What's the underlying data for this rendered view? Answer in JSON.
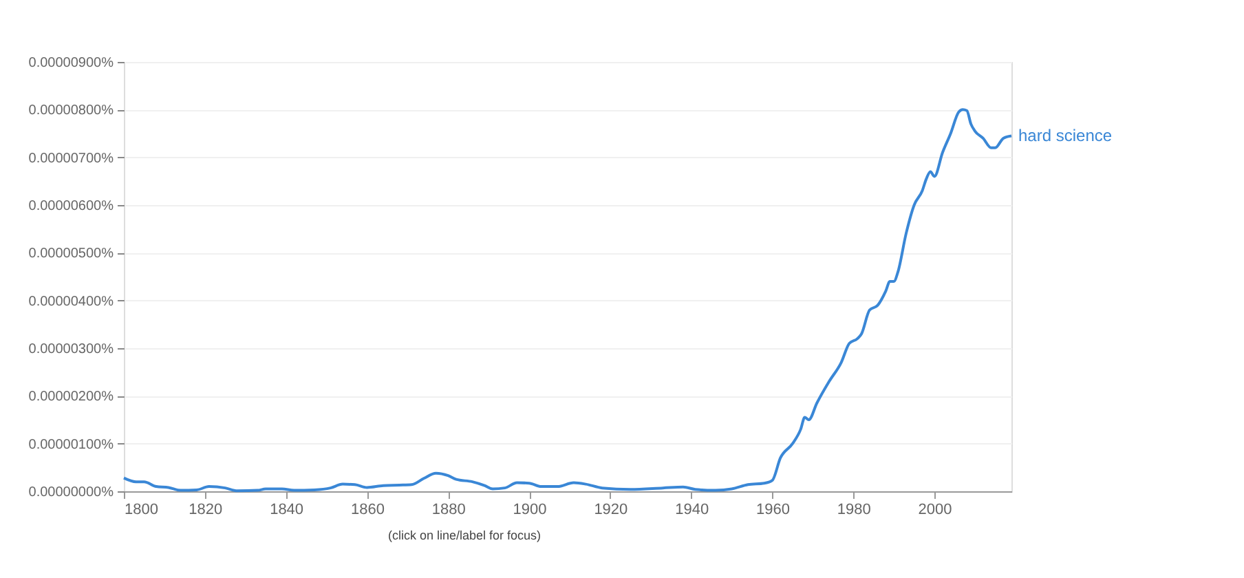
{
  "chart_data": {
    "type": "line",
    "x": [
      1800,
      1803,
      1805,
      1808,
      1811,
      1814,
      1818,
      1821,
      1825,
      1828,
      1833,
      1835,
      1839,
      1842,
      1847,
      1851,
      1854,
      1857,
      1860,
      1864,
      1868,
      1871,
      1874,
      1877,
      1880,
      1882,
      1886,
      1889,
      1891,
      1894,
      1897,
      1900,
      1903,
      1907,
      1911,
      1914,
      1918,
      1925,
      1933,
      1938,
      1941,
      1946,
      1950,
      1954,
      1958,
      1960,
      1962,
      1965,
      1967,
      1968,
      1969,
      1971,
      1974,
      1977,
      1979,
      1981,
      1982,
      1984,
      1986,
      1988,
      1989,
      1990,
      1991,
      1993,
      1995,
      1997,
      1998,
      1999,
      2000,
      2002,
      2004,
      2006,
      2007,
      2008,
      2009,
      2010,
      2012,
      2014,
      2015,
      2017,
      2019
    ],
    "series": [
      {
        "name": "hard science",
        "color": "#3a87d6",
        "values": [
          2.8e-07,
          2e-07,
          2e-07,
          1e-07,
          8e-08,
          2e-08,
          3e-08,
          1e-07,
          7e-08,
          1e-08,
          2e-08,
          5e-08,
          5e-08,
          2e-08,
          3e-08,
          7e-08,
          1.5e-07,
          1.4e-07,
          8e-08,
          1.2e-07,
          1.3e-07,
          1.4e-07,
          2.7e-07,
          3.8e-07,
          3.3e-07,
          2.5e-07,
          2e-07,
          1.2e-07,
          5e-08,
          7e-08,
          1.8e-07,
          1.7e-07,
          1e-07,
          1e-07,
          1.8e-07,
          1.5e-07,
          7e-08,
          4e-08,
          7e-08,
          9e-08,
          4e-08,
          2e-08,
          5e-08,
          1.4e-07,
          1.7e-07,
          2.3e-07,
          7e-07,
          1e-06,
          1.3e-06,
          1.55e-06,
          1.5e-06,
          1.85e-06,
          2.3e-06,
          2.7e-06,
          3.1e-06,
          3.2e-06,
          3.3e-06,
          3.8e-06,
          3.9e-06,
          4.2e-06,
          4.4e-06,
          4.4e-06,
          4.6e-06,
          5.4e-06,
          6e-06,
          6.3e-06,
          6.55e-06,
          6.7e-06,
          6.6e-06,
          7.1e-06,
          7.5e-06,
          7.95e-06,
          8e-06,
          7.98e-06,
          7.7e-06,
          7.55e-06,
          7.4e-06,
          7.2e-06,
          7.2e-06,
          7.4e-06,
          7.45e-06
        ]
      }
    ],
    "xlim": [
      1800,
      2019
    ],
    "xticks": [
      1800,
      1820,
      1840,
      1860,
      1880,
      1900,
      1920,
      1940,
      1960,
      1980,
      2000
    ],
    "ylim": [
      0,
      9e-06
    ],
    "yticks": [
      {
        "value": 0,
        "label": "0.00000000%"
      },
      {
        "value": 1e-06,
        "label": "0.00000100%"
      },
      {
        "value": 2e-06,
        "label": "0.00000200%"
      },
      {
        "value": 3e-06,
        "label": "0.00000300%"
      },
      {
        "value": 4e-06,
        "label": "0.00000400%"
      },
      {
        "value": 5e-06,
        "label": "0.00000500%"
      },
      {
        "value": 6e-06,
        "label": "0.00000600%"
      },
      {
        "value": 7e-06,
        "label": "0.00000700%"
      },
      {
        "value": 8e-06,
        "label": "0.00000800%"
      },
      {
        "value": 9e-06,
        "label": "0.00000900%"
      }
    ],
    "grid": "y",
    "legend": false,
    "marker": "none",
    "line_style": "solid",
    "annotations": [
      "(click on line/label for focus)"
    ]
  }
}
